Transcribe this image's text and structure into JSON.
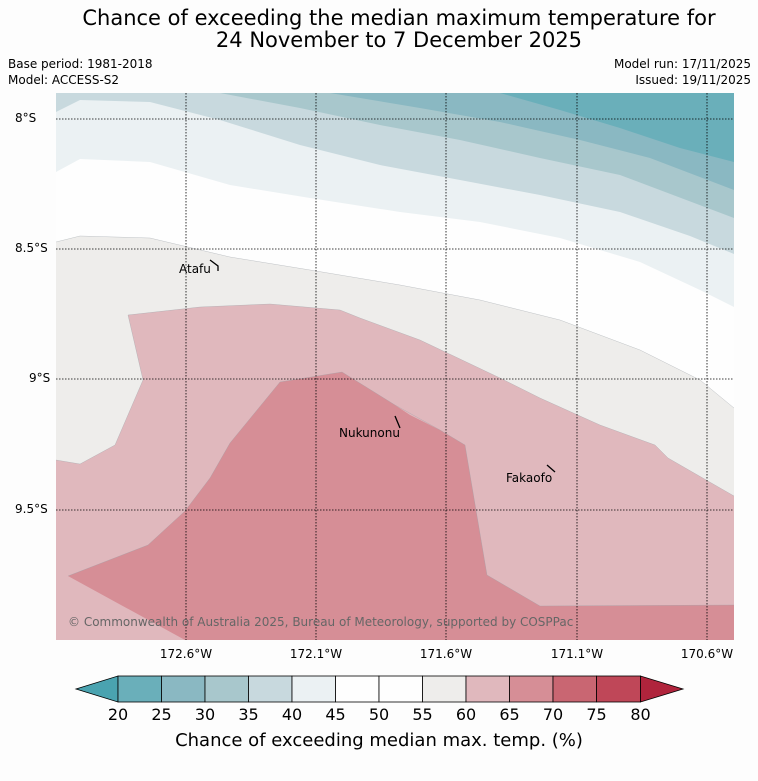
{
  "title_line1": "Chance of exceeding the median maximum temperature for",
  "title_line2": "24 November to 7 December 2025",
  "base_period": "Base period: 1981-2018",
  "model": "Model: ACCESS-S2",
  "model_run": "Model run: 17/11/2025",
  "issued": "Issued: 19/11/2025",
  "lat_labels": [
    "8°S",
    "8.5°S",
    "9°S",
    "9.5°S"
  ],
  "lon_labels": [
    "172.6°W",
    "172.1°W",
    "171.6°W",
    "171.1°W",
    "170.6°W"
  ],
  "places": {
    "atafu": "Atafu",
    "nukunonu": "Nukunonu",
    "fakaofo": "Fakaofo"
  },
  "copyright": "© Commonwealth of Australia 2025, Bureau of Meteorology, supported by COSPPac",
  "colorbar": {
    "ticks": [
      "20",
      "25",
      "30",
      "35",
      "40",
      "45",
      "50",
      "55",
      "60",
      "65",
      "70",
      "75",
      "80"
    ],
    "colors": {
      "under": "#4aa3b0",
      "c20_25": "#6aafba",
      "c25_30": "#8ab8c2",
      "c30_35": "#a8c7cc",
      "c35_40": "#c8d9de",
      "c40_45": "#ebf1f3",
      "c45_50": "#fefefe",
      "c50_55": "#fefefe",
      "c55_60": "#eeedeb",
      "c60_65": "#e0b8bd",
      "c65_70": "#d68e96",
      "c70_75": "#c96672",
      "c75_80": "#bf4758",
      "over": "#b0243c"
    },
    "label": "Chance of exceeding median max. temp. (%)"
  }
}
